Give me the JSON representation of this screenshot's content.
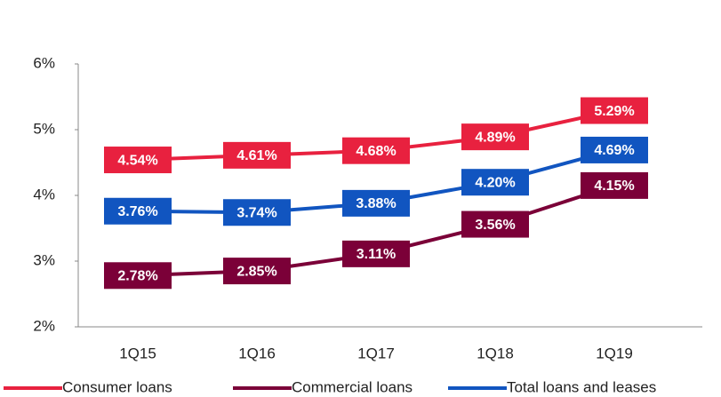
{
  "chart_data": {
    "type": "line",
    "categories": [
      "1Q15",
      "1Q16",
      "1Q17",
      "1Q18",
      "1Q19"
    ],
    "series": [
      {
        "name": "Consumer loans",
        "color": "#e8213f",
        "values": [
          4.54,
          4.61,
          4.68,
          4.89,
          5.29
        ],
        "value_labels": [
          "4.54%",
          "4.61%",
          "4.68%",
          "4.89%",
          "5.29%"
        ]
      },
      {
        "name": "Commercial loans",
        "color": "#7b0038",
        "values": [
          2.78,
          2.85,
          3.11,
          3.56,
          4.15
        ],
        "value_labels": [
          "2.78%",
          "2.85%",
          "3.11%",
          "3.56%",
          "4.15%"
        ]
      },
      {
        "name": "Total loans and leases",
        "color": "#1155c0",
        "values": [
          3.76,
          3.74,
          3.88,
          4.2,
          4.69
        ],
        "value_labels": [
          "3.76%",
          "3.74%",
          "3.88%",
          "4.20%",
          "4.69%"
        ]
      }
    ],
    "ylim": [
      2,
      6
    ],
    "yticks": [
      {
        "value": 2,
        "label": "2%"
      },
      {
        "value": 3,
        "label": "3%"
      },
      {
        "value": 4,
        "label": "4%"
      },
      {
        "value": 5,
        "label": "5%"
      },
      {
        "value": 6,
        "label": "6%"
      }
    ],
    "grid": false,
    "legend": "bottom"
  }
}
